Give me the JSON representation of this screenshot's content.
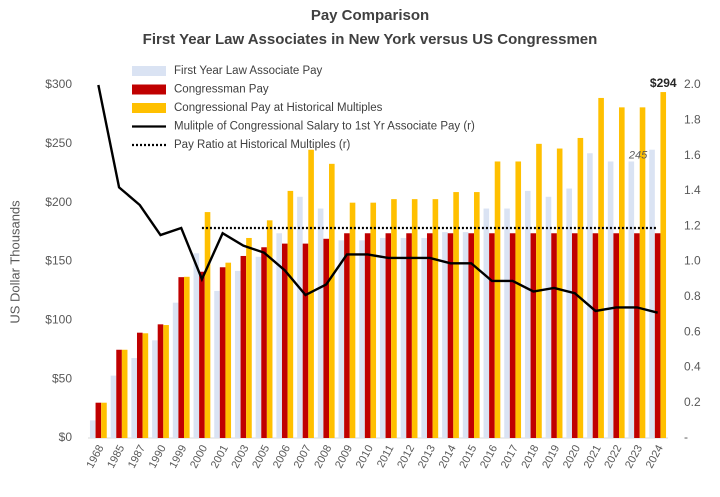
{
  "chart_data": {
    "type": "bar",
    "title": "Pay Comparison",
    "subtitle": "First Year Law Associates in New York versus US Congressmen",
    "y_label": "US Dollar Thousands",
    "categories": [
      "1968",
      "1985",
      "1987",
      "1990",
      "1999",
      "2000",
      "2001",
      "2003",
      "2005",
      "2006",
      "2007",
      "2008",
      "2009",
      "2010",
      "2011",
      "2012",
      "2013",
      "2014",
      "2015",
      "2016",
      "2017",
      "2018",
      "2019",
      "2020",
      "2021",
      "2022",
      "2023",
      "2024"
    ],
    "series": [
      {
        "name": "First Year Law Associate Pay",
        "color": "#dae3f3",
        "type": "bar",
        "values": [
          15,
          53,
          68,
          83,
          115,
          157,
          125,
          142,
          154,
          174,
          205,
          195,
          168,
          168,
          170,
          170,
          170,
          175,
          175,
          195,
          195,
          210,
          205,
          212,
          242,
          235,
          235,
          245
        ],
        "value_labels": [
          null,
          null,
          null,
          null,
          null,
          null,
          null,
          null,
          null,
          null,
          null,
          null,
          null,
          null,
          null,
          null,
          null,
          null,
          null,
          null,
          null,
          null,
          null,
          null,
          null,
          null,
          null,
          "245"
        ]
      },
      {
        "name": "Congressman Pay",
        "color": "#c00000",
        "type": "bar",
        "values": [
          30,
          75,
          89.5,
          96.6,
          136.7,
          141.3,
          145.1,
          154.7,
          162.1,
          165.2,
          165.2,
          169.3,
          174,
          174,
          174,
          174,
          174,
          174,
          174,
          174,
          174,
          174,
          174,
          174,
          174,
          174,
          174,
          174
        ]
      },
      {
        "name": "Congressional Pay at Historical Multiples",
        "color": "#ffc000",
        "type": "bar",
        "values": [
          30,
          75,
          89,
          96,
          137,
          192,
          149,
          170,
          185,
          210,
          245,
          233,
          200,
          200,
          203,
          203,
          203,
          209,
          209,
          235,
          235,
          250,
          246,
          255,
          289,
          281,
          281,
          294
        ],
        "value_labels": [
          null,
          null,
          null,
          null,
          null,
          null,
          null,
          null,
          null,
          null,
          null,
          null,
          null,
          null,
          null,
          null,
          null,
          null,
          null,
          null,
          null,
          null,
          null,
          null,
          null,
          null,
          null,
          "$294"
        ]
      },
      {
        "name": "Mulitple of Congressional Salary to 1st Yr Associate Pay (r)",
        "color": "#000000",
        "type": "line",
        "axis": "y2",
        "values": [
          2.0,
          1.42,
          1.32,
          1.15,
          1.19,
          0.9,
          1.16,
          1.09,
          1.05,
          0.95,
          0.81,
          0.87,
          1.04,
          1.04,
          1.02,
          1.02,
          1.02,
          0.99,
          0.99,
          0.89,
          0.89,
          0.83,
          0.85,
          0.82,
          0.72,
          0.74,
          0.74,
          0.71
        ]
      },
      {
        "name": "Pay Ratio at Historical Multiples (r)",
        "color": "#000000",
        "type": "dotted",
        "axis": "y2",
        "values": [
          null,
          null,
          null,
          null,
          null,
          1.19,
          1.19,
          1.19,
          1.19,
          1.19,
          1.19,
          1.19,
          1.19,
          1.19,
          1.19,
          1.19,
          1.19,
          1.19,
          1.19,
          1.19,
          1.19,
          1.19,
          1.19,
          1.19,
          1.19,
          1.19,
          1.19,
          1.19
        ]
      }
    ],
    "ylim": [
      0,
      300
    ],
    "yticks": [
      {
        "value": 0,
        "label": "$0"
      },
      {
        "value": 50,
        "label": "$50"
      },
      {
        "value": 100,
        "label": "$100"
      },
      {
        "value": 150,
        "label": "$150"
      },
      {
        "value": 200,
        "label": "$200"
      },
      {
        "value": 250,
        "label": "$250"
      },
      {
        "value": 300,
        "label": "$300"
      }
    ],
    "y2lim": [
      0,
      2
    ],
    "y2ticks": [
      {
        "value": 0,
        "label": "-"
      },
      0.2,
      0.4,
      0.6,
      0.8,
      {
        "value": 1,
        "label": "1.0"
      },
      1.2,
      1.4,
      1.6,
      1.8,
      {
        "value": 2,
        "label": "2.0"
      }
    ],
    "grid": false,
    "legend": "upper-left"
  }
}
